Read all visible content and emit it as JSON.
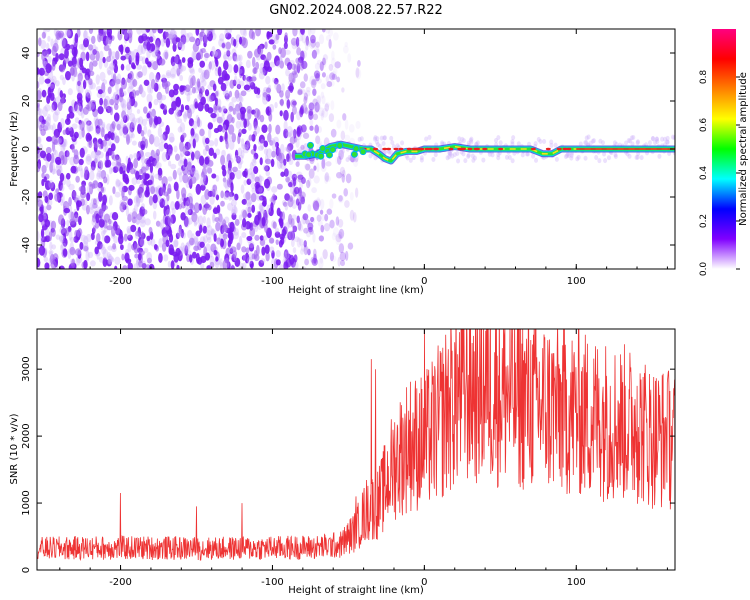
{
  "title": "GN02.2024.008.22.57.R22",
  "chart_data": [
    {
      "type": "heatmap",
      "xlabel": "Height of straight line (km)",
      "ylabel": "Frequency (Hz)",
      "xlim": [
        -255,
        165
      ],
      "ylim": [
        -50,
        50
      ],
      "x_ticks": [
        -200,
        -100,
        0,
        100
      ],
      "y_ticks": [
        -40,
        -20,
        0,
        20,
        40
      ],
      "noise_region_x": [
        -255,
        -55
      ],
      "tone_trace": [
        [
          -85,
          -3
        ],
        [
          -78,
          -3
        ],
        [
          -70,
          -2
        ],
        [
          -62,
          1
        ],
        [
          -55,
          2
        ],
        [
          -48,
          1
        ],
        [
          -40,
          0
        ],
        [
          -35,
          0
        ],
        [
          -30,
          -2
        ],
        [
          -26,
          -4
        ],
        [
          -22,
          -5
        ],
        [
          -18,
          -2
        ],
        [
          -12,
          -1
        ],
        [
          -5,
          -1
        ],
        [
          0,
          0
        ],
        [
          10,
          0
        ],
        [
          20,
          1
        ],
        [
          30,
          0
        ],
        [
          40,
          0
        ],
        [
          50,
          0
        ],
        [
          60,
          0
        ],
        [
          70,
          0
        ],
        [
          78,
          -2
        ],
        [
          84,
          -2
        ],
        [
          90,
          0
        ],
        [
          100,
          0
        ],
        [
          110,
          0
        ],
        [
          120,
          0
        ],
        [
          130,
          0
        ],
        [
          140,
          0
        ],
        [
          150,
          0
        ],
        [
          165,
          0
        ]
      ],
      "colorbar": {
        "label": "Normalized spectral amplitude",
        "range": [
          0,
          1
        ],
        "ticks": [
          "0.0",
          "0.2",
          "0.4",
          "0.6",
          "0.8"
        ],
        "colors": [
          "#ffffff",
          "#8000ff",
          "#0000ff",
          "#00ffff",
          "#00ff00",
          "#ffff00",
          "#ff8000",
          "#ff0000",
          "#ff0080"
        ]
      }
    },
    {
      "type": "line",
      "xlabel": "Height of straight line (km)",
      "ylabel": "SNR (10 * v/v)",
      "xlim": [
        -255,
        165
      ],
      "ylim": [
        0,
        3600
      ],
      "x_ticks": [
        -200,
        -100,
        0,
        100
      ],
      "y_ticks": [
        0,
        1000,
        2000,
        3000
      ],
      "color": "#ee3333",
      "series_envelope": [
        [
          -255,
          320
        ],
        [
          -220,
          330
        ],
        [
          -180,
          330
        ],
        [
          -140,
          320
        ],
        [
          -100,
          330
        ],
        [
          -70,
          340
        ],
        [
          -55,
          380
        ],
        [
          -45,
          600
        ],
        [
          -38,
          900
        ],
        [
          -30,
          1000
        ],
        [
          -25,
          1300
        ],
        [
          -20,
          1600
        ],
        [
          -10,
          1900
        ],
        [
          0,
          1900
        ],
        [
          10,
          2200
        ],
        [
          20,
          2600
        ],
        [
          30,
          2750
        ],
        [
          40,
          2750
        ],
        [
          60,
          2600
        ],
        [
          80,
          2450
        ],
        [
          100,
          2350
        ],
        [
          120,
          2250
        ],
        [
          140,
          2150
        ],
        [
          150,
          2000
        ],
        [
          165,
          1950
        ]
      ],
      "spikes": [
        [
          -200,
          1150
        ],
        [
          -150,
          950
        ],
        [
          -120,
          1000
        ],
        [
          -45,
          1100
        ],
        [
          -35,
          3150
        ],
        [
          -32,
          3000
        ],
        [
          -22,
          1900
        ],
        [
          0,
          3600
        ],
        [
          15,
          2900
        ],
        [
          28,
          3450
        ],
        [
          35,
          3300
        ],
        [
          42,
          3500
        ],
        [
          48,
          3200
        ],
        [
          60,
          3100
        ],
        [
          120,
          2900
        ],
        [
          140,
          2750
        ],
        [
          160,
          2800
        ]
      ]
    }
  ]
}
